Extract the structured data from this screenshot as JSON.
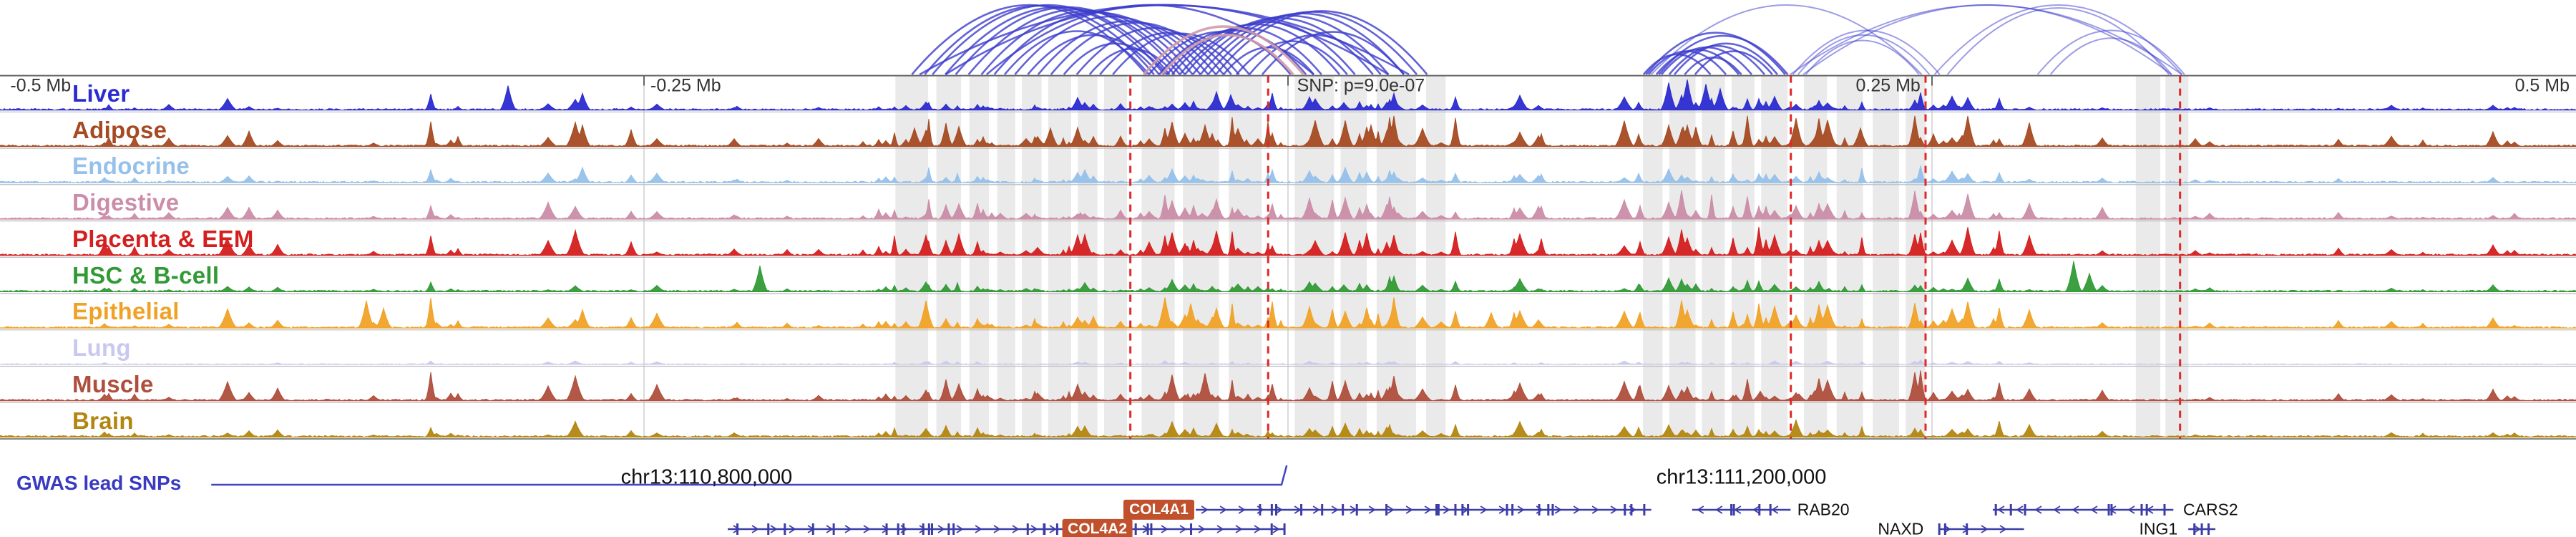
{
  "chart_data": {
    "type": "area",
    "title": "Tissue chromatin signal tracks with chromatin interaction arcs at GWAS locus on chr13",
    "x_axis": {
      "labels": [
        {
          "text": "-0.5 Mb",
          "x": 0.004,
          "align": "left"
        },
        {
          "text": "-0.25 Mb",
          "x": 0.2525,
          "align": "left"
        },
        {
          "text": "SNP: p=9.0e-07",
          "x": 0.5035,
          "align": "left"
        },
        {
          "text": "0.25 Mb",
          "x": 0.7455,
          "align": "right"
        },
        {
          "text": "0.5 Mb",
          "x": 0.9975,
          "align": "right"
        }
      ],
      "ticks": [
        0.25,
        0.5,
        0.75
      ]
    },
    "tracks": [
      {
        "label": "Liver",
        "color": "#2b2bd0",
        "amp": 0.5,
        "marquee": [
          [
            0.197,
            0.8
          ],
          [
            0.226,
            0.55
          ],
          [
            0.472,
            0.6
          ],
          [
            0.478,
            0.5
          ],
          [
            0.648,
            0.9
          ],
          [
            0.655,
            1.0
          ],
          [
            0.662,
            0.85
          ],
          [
            0.668,
            0.7
          ]
        ]
      },
      {
        "label": "Adipose",
        "color": "#a54a22",
        "amp": 1.0,
        "marquee": [
          [
            0.226,
            0.7
          ],
          [
            0.355,
            0.6
          ],
          [
            0.372,
            0.65
          ],
          [
            0.408,
            0.6
          ],
          [
            0.455,
            0.8
          ],
          [
            0.468,
            0.7
          ],
          [
            0.522,
            0.85
          ],
          [
            0.532,
            0.7
          ],
          [
            0.648,
            0.7
          ],
          [
            0.722,
            0.6
          ]
        ]
      },
      {
        "label": "Endocrine",
        "color": "#95c1ea",
        "amp": 0.45,
        "marquee": [
          [
            0.226,
            0.5
          ],
          [
            0.455,
            0.45
          ],
          [
            0.522,
            0.5
          ],
          [
            0.648,
            0.45
          ]
        ]
      },
      {
        "label": "Digestive",
        "color": "#cb8da8",
        "amp": 0.75,
        "marquee": [
          [
            0.372,
            0.5
          ],
          [
            0.455,
            0.6
          ],
          [
            0.472,
            0.65
          ],
          [
            0.522,
            0.7
          ],
          [
            0.648,
            0.55
          ]
        ]
      },
      {
        "label": "Placenta & EEM",
        "color": "#d41f1f",
        "amp": 0.8,
        "marquee": [
          [
            0.088,
            0.5
          ],
          [
            0.372,
            0.7
          ],
          [
            0.455,
            0.75
          ],
          [
            0.472,
            0.8
          ],
          [
            0.522,
            0.75
          ],
          [
            0.648,
            0.6
          ]
        ]
      },
      {
        "label": "HSC & B-cell",
        "color": "#319a36",
        "amp": 0.4,
        "marquee": [
          [
            0.295,
            0.85
          ],
          [
            0.455,
            0.4
          ],
          [
            0.648,
            0.45
          ],
          [
            0.805,
            1.0
          ],
          [
            0.811,
            0.6
          ]
        ]
      },
      {
        "label": "Epithelial",
        "color": "#f0a226",
        "amp": 0.85,
        "marquee": [
          [
            0.142,
            0.9
          ],
          [
            0.149,
            0.65
          ],
          [
            0.226,
            0.6
          ],
          [
            0.452,
            1.0
          ],
          [
            0.462,
            0.8
          ],
          [
            0.472,
            0.65
          ],
          [
            0.522,
            0.55
          ],
          [
            0.579,
            0.5
          ]
        ]
      },
      {
        "label": "Lung",
        "color": "#c9c9ef",
        "amp": 0.12,
        "marquee": []
      },
      {
        "label": "Muscle",
        "color": "#af4e3c",
        "amp": 0.8,
        "marquee": [
          [
            0.372,
            0.55
          ],
          [
            0.455,
            0.85
          ],
          [
            0.468,
            0.9
          ],
          [
            0.522,
            0.65
          ],
          [
            0.648,
            0.5
          ]
        ]
      },
      {
        "label": "Brain",
        "color": "#b3860f",
        "amp": 0.45,
        "marquee": [
          [
            0.455,
            0.5
          ],
          [
            0.472,
            0.45
          ],
          [
            0.522,
            0.45
          ],
          [
            0.648,
            0.4
          ]
        ]
      }
    ],
    "arcs": {
      "blue": "#3c3ccd",
      "pink": "#cf9aa8",
      "items": [
        [
          0.354,
          0.445,
          0
        ],
        [
          0.359,
          0.448,
          0
        ],
        [
          0.362,
          0.452,
          0
        ],
        [
          0.367,
          0.454,
          0
        ],
        [
          0.371,
          0.458,
          0
        ],
        [
          0.376,
          0.46,
          0
        ],
        [
          0.381,
          0.463,
          0
        ],
        [
          0.386,
          0.466,
          0
        ],
        [
          0.39,
          0.446,
          0
        ],
        [
          0.394,
          0.469,
          0
        ],
        [
          0.399,
          0.45,
          0
        ],
        [
          0.403,
          0.472,
          0
        ],
        [
          0.408,
          0.475,
          0
        ],
        [
          0.413,
          0.453,
          0
        ],
        [
          0.418,
          0.478,
          0
        ],
        [
          0.423,
          0.456,
          0
        ],
        [
          0.427,
          0.481,
          0
        ],
        [
          0.432,
          0.485,
          0
        ],
        [
          0.357,
          0.547,
          0
        ],
        [
          0.367,
          0.539,
          0
        ],
        [
          0.383,
          0.51,
          0
        ],
        [
          0.446,
          0.501,
          0
        ],
        [
          0.45,
          0.507,
          0
        ],
        [
          0.453,
          0.513,
          0
        ],
        [
          0.455,
          0.52,
          0
        ],
        [
          0.458,
          0.526,
          0
        ],
        [
          0.46,
          0.533,
          0
        ],
        [
          0.463,
          0.539,
          0
        ],
        [
          0.466,
          0.545,
          0
        ],
        [
          0.469,
          0.55,
          0
        ],
        [
          0.472,
          0.554,
          0
        ],
        [
          0.475,
          0.51,
          0
        ],
        [
          0.48,
          0.523,
          0
        ],
        [
          0.485,
          0.536,
          0
        ],
        [
          0.49,
          0.545,
          0
        ],
        [
          0.444,
          0.506,
          1
        ],
        [
          0.451,
          0.502,
          1
        ],
        [
          0.638,
          0.664,
          0
        ],
        [
          0.64,
          0.67,
          0
        ],
        [
          0.643,
          0.675,
          0
        ],
        [
          0.645,
          0.68,
          0
        ],
        [
          0.648,
          0.685,
          0
        ],
        [
          0.65,
          0.69,
          0
        ],
        [
          0.639,
          0.693,
          0
        ],
        [
          0.654,
          0.676,
          0
        ],
        [
          0.658,
          0.688,
          0
        ],
        [
          0.644,
          0.694,
          0
        ],
        [
          0.698,
          0.749,
          2
        ],
        [
          0.701,
          0.745,
          2
        ],
        [
          0.696,
          0.753,
          2
        ],
        [
          0.695,
          0.847,
          2
        ],
        [
          0.7,
          0.843,
          2
        ],
        [
          0.751,
          0.847,
          2
        ],
        [
          0.756,
          0.842,
          2
        ],
        [
          0.791,
          0.848,
          2
        ],
        [
          0.796,
          0.843,
          2
        ],
        [
          0.641,
          0.746,
          2
        ]
      ]
    },
    "highlights": {
      "color": "#d9d9d9",
      "bands": [
        [
          0.3476,
          0.3603
        ],
        [
          0.3635,
          0.3731
        ],
        [
          0.3763,
          0.3839
        ],
        [
          0.3871,
          0.3941
        ],
        [
          0.3967,
          0.4043
        ],
        [
          0.4069,
          0.4158
        ],
        [
          0.4184,
          0.426
        ],
        [
          0.4286,
          0.4375
        ],
        [
          0.4432,
          0.456
        ],
        [
          0.4592,
          0.4732
        ],
        [
          0.477,
          0.4898
        ],
        [
          0.5026,
          0.5179
        ],
        [
          0.5204,
          0.5306
        ],
        [
          0.5344,
          0.5497
        ],
        [
          0.5536,
          0.5612
        ],
        [
          0.6378,
          0.6454
        ],
        [
          0.648,
          0.6582
        ],
        [
          0.6607,
          0.6696
        ],
        [
          0.6722,
          0.6811
        ],
        [
          0.6837,
          0.6939
        ],
        [
          0.7003,
          0.7092
        ],
        [
          0.713,
          0.7232
        ],
        [
          0.727,
          0.7372
        ],
        [
          0.7398,
          0.7475
        ],
        [
          0.8291,
          0.8386
        ],
        [
          0.8406,
          0.8495
        ]
      ]
    },
    "snp_lines": {
      "color": "#e02828",
      "xs": [
        0.4388,
        0.4923,
        0.6952,
        0.7475,
        0.8463
      ]
    },
    "annotations": {
      "gwas_label": "GWAS lead SNPs",
      "label_color": "#3a3ac0",
      "lollipop": {
        "x1": 0.082,
        "x2": 0.4975,
        "tip_x": 0.4995,
        "color": "#4444c4"
      },
      "coords": [
        {
          "text": "chr13:110,800,000",
          "x": 0.241
        },
        {
          "text": "chr13:111,200,000",
          "x": 0.643
        }
      ]
    },
    "genes": {
      "color": "#3d3da8",
      "box_bg": "#c0512c",
      "items": [
        {
          "name": "COL4A1",
          "x1": 0.4642,
          "x2": 0.641,
          "row": 0,
          "dir": 1,
          "label_style": "box",
          "label_x": 0.4636,
          "label_anchor": "right"
        },
        {
          "name": "RAB20",
          "x1": 0.6569,
          "x2": 0.6951,
          "row": 0,
          "dir": -1,
          "label_style": "plain",
          "label_x": 0.6977,
          "label_anchor": "left"
        },
        {
          "name": "CARS2",
          "x1": 0.7736,
          "x2": 0.8437,
          "row": 0,
          "dir": -1,
          "label_style": "plain",
          "label_x": 0.8475,
          "label_anchor": "left"
        },
        {
          "name": "COL4A2",
          "x1": 0.2825,
          "x2": 0.4987,
          "row": 1,
          "dir": 1,
          "label_style": "box",
          "label_x": 0.426,
          "label_anchor": "center"
        },
        {
          "name": "NAXD",
          "x1": 0.7525,
          "x2": 0.7857,
          "row": 1,
          "dir": 1,
          "label_style": "plain",
          "label_x": 0.729,
          "label_anchor": "left"
        },
        {
          "name": "ING1",
          "x1": 0.8495,
          "x2": 0.86,
          "row": 1,
          "dir": 1,
          "label_style": "plain",
          "label_x": 0.8304,
          "label_anchor": "left"
        }
      ]
    }
  },
  "signal": {
    "seed": 1337,
    "base_rate": 0.05,
    "regions": [
      [
        0.05,
        0.335,
        0.07
      ],
      [
        0.335,
        0.445,
        0.3
      ],
      [
        0.445,
        0.565,
        0.36
      ],
      [
        0.565,
        0.628,
        0.1
      ],
      [
        0.628,
        0.7,
        0.33
      ],
      [
        0.7,
        0.777,
        0.22
      ],
      [
        0.828,
        0.856,
        0.14
      ]
    ]
  }
}
